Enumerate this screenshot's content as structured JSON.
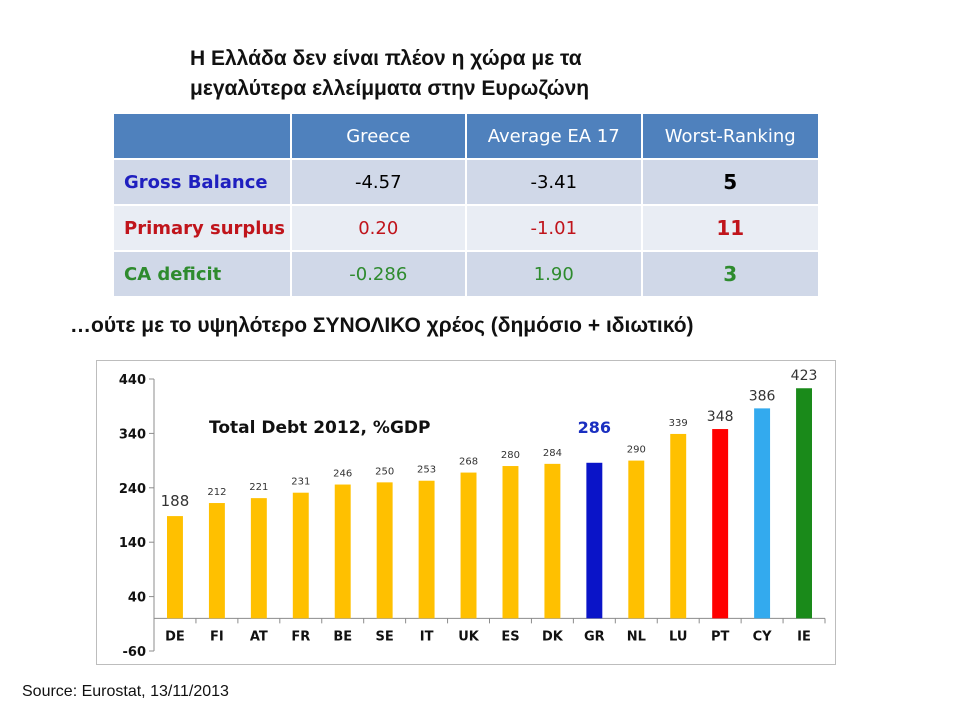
{
  "title": {
    "line1": "Η Ελλάδα δεν είναι πλέον η χώρα με τα",
    "line2": "μεγαλύτερα ελλείμματα στην Ευρωζώνη"
  },
  "table": {
    "headers": [
      "",
      "Greece",
      "Average EA 17",
      "Worst-Ranking"
    ],
    "rows": [
      {
        "label": "Gross Balance",
        "greece": "-4.57",
        "average": "-3.41",
        "rank": "5",
        "color": "#1f1fbf",
        "value_color": "#000000"
      },
      {
        "label": "Primary surplus",
        "greece": "0.20",
        "average": "-1.01",
        "rank": "11",
        "color": "#c0141b",
        "value_color": "#c0141b"
      },
      {
        "label": "CA deficit",
        "greece": "-0.286",
        "average": "1.90",
        "rank": "3",
        "color": "#2e8b2e",
        "value_color": "#2e8b2e"
      }
    ]
  },
  "subtitle": "…ούτε με το υψηλότερο ΣΥΝΟΛΙΚΟ χρέος (δημόσιο + ιδιωτικό)",
  "chart_data": {
    "type": "bar",
    "title": "Total Debt 2012, %GDP",
    "categories": [
      "DE",
      "FI",
      "AT",
      "FR",
      "BE",
      "SE",
      "IT",
      "UK",
      "ES",
      "DK",
      "GR",
      "NL",
      "LU",
      "PT",
      "CY",
      "IE"
    ],
    "values": [
      188,
      212,
      221,
      231,
      246,
      250,
      253,
      268,
      280,
      284,
      286,
      290,
      339,
      348,
      386,
      423
    ],
    "colors": [
      "#ffc000",
      "#ffc000",
      "#ffc000",
      "#ffc000",
      "#ffc000",
      "#ffc000",
      "#ffc000",
      "#ffc000",
      "#ffc000",
      "#ffc000",
      "#0a14c8",
      "#ffc000",
      "#ffc000",
      "#ff0000",
      "#33aaee",
      "#1a8a1a"
    ],
    "data_labels": [
      "188",
      "212",
      "221",
      "231",
      "246",
      "250",
      "253",
      "268",
      "280",
      "284",
      "286",
      "290",
      "339",
      "348",
      "386",
      "423"
    ],
    "yticks": [
      -60,
      40,
      140,
      240,
      340,
      440
    ],
    "ylim": [
      -60,
      440
    ],
    "grid": false,
    "legend": "none"
  },
  "source": "Source: Eurostat, 13/11/2013"
}
